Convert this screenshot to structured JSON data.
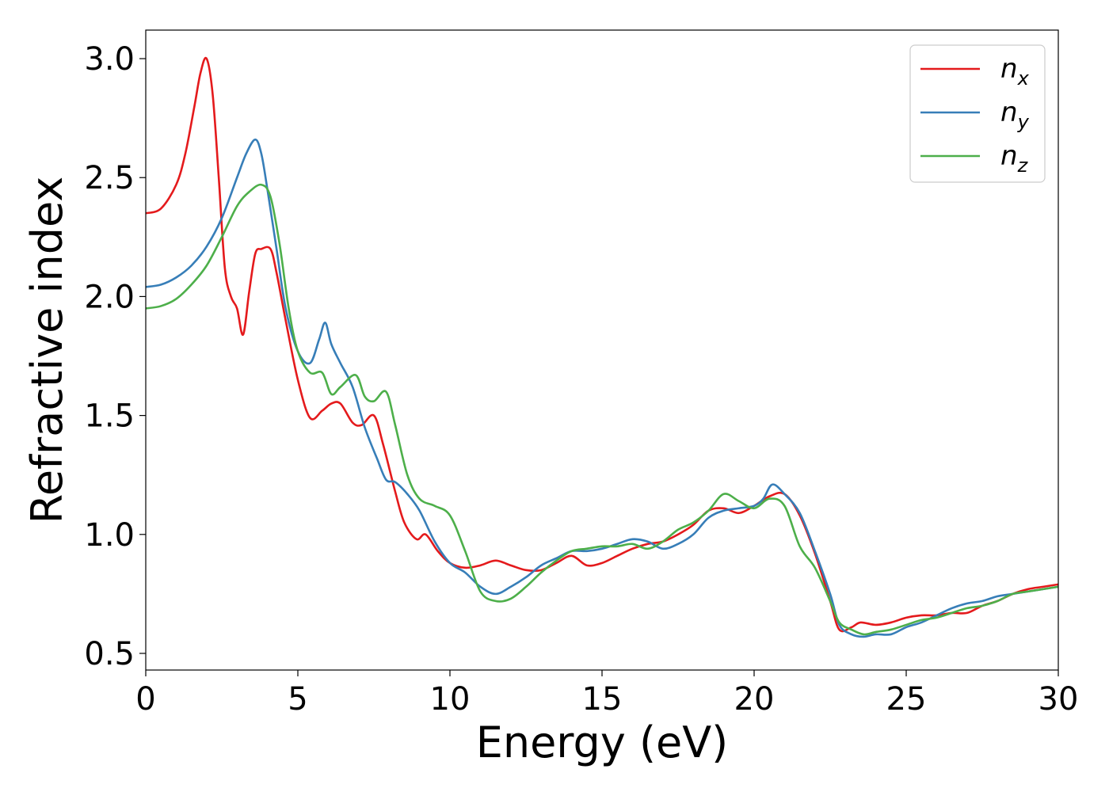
{
  "chart_data": {
    "type": "line",
    "title": "",
    "xlabel": "Energy (eV)",
    "ylabel": "Refractive index",
    "xlim": [
      0,
      30
    ],
    "ylim": [
      0.43,
      3.12
    ],
    "x_ticks": [
      0,
      5,
      10,
      15,
      20,
      25,
      30
    ],
    "y_ticks": [
      0.5,
      1.0,
      1.5,
      2.0,
      2.5,
      3.0
    ],
    "x_tick_labels": [
      "0",
      "5",
      "10",
      "15",
      "20",
      "25",
      "30"
    ],
    "y_tick_labels": [
      "0.5",
      "1.0",
      "1.5",
      "2.0",
      "2.5",
      "3.0"
    ],
    "grid": false,
    "legend_position": "top-right",
    "series": [
      {
        "name": "n_x",
        "label_base": "n",
        "label_sub": "x",
        "color": "#e41a1c",
        "x": [
          0,
          0.5,
          1.0,
          1.3,
          1.6,
          1.8,
          2.0,
          2.2,
          2.4,
          2.6,
          2.8,
          3.0,
          3.2,
          3.4,
          3.6,
          3.8,
          4.1,
          4.3,
          4.6,
          5.0,
          5.4,
          5.8,
          6.1,
          6.4,
          6.8,
          7.1,
          7.5,
          7.8,
          8.2,
          8.5,
          8.9,
          9.2,
          9.6,
          10.0,
          10.5,
          11.0,
          11.5,
          12.0,
          12.5,
          13.0,
          13.5,
          14.0,
          14.5,
          15.0,
          15.5,
          16.0,
          16.5,
          17.0,
          17.5,
          18.0,
          18.5,
          19.0,
          19.5,
          20.0,
          20.5,
          21.0,
          21.5,
          22.0,
          22.5,
          22.8,
          23.2,
          23.5,
          24.0,
          24.5,
          25.0,
          25.5,
          26.0,
          26.5,
          27.0,
          27.5,
          28.0,
          28.5,
          29.0,
          29.5,
          30.0
        ],
        "values": [
          2.35,
          2.37,
          2.47,
          2.6,
          2.8,
          2.94,
          3.0,
          2.85,
          2.5,
          2.12,
          2.0,
          1.95,
          1.84,
          2.02,
          2.18,
          2.2,
          2.2,
          2.1,
          1.9,
          1.65,
          1.49,
          1.52,
          1.55,
          1.55,
          1.47,
          1.46,
          1.5,
          1.38,
          1.18,
          1.05,
          0.98,
          1.0,
          0.93,
          0.88,
          0.86,
          0.87,
          0.89,
          0.87,
          0.85,
          0.85,
          0.88,
          0.91,
          0.87,
          0.88,
          0.91,
          0.94,
          0.96,
          0.97,
          1.0,
          1.04,
          1.1,
          1.11,
          1.09,
          1.12,
          1.16,
          1.17,
          1.08,
          0.92,
          0.72,
          0.6,
          0.61,
          0.63,
          0.62,
          0.63,
          0.65,
          0.66,
          0.66,
          0.67,
          0.67,
          0.7,
          0.72,
          0.75,
          0.77,
          0.78,
          0.79
        ]
      },
      {
        "name": "n_y",
        "label_base": "n",
        "label_sub": "y",
        "color": "#377eb8",
        "x": [
          0,
          0.5,
          1.0,
          1.5,
          2.0,
          2.5,
          3.0,
          3.3,
          3.6,
          3.8,
          4.0,
          4.3,
          4.6,
          5.0,
          5.4,
          5.7,
          5.9,
          6.1,
          6.4,
          6.8,
          7.2,
          7.6,
          7.9,
          8.2,
          8.6,
          9.0,
          9.5,
          10.0,
          10.5,
          11.0,
          11.5,
          12.0,
          12.5,
          13.0,
          13.5,
          14.0,
          14.5,
          15.0,
          15.5,
          16.0,
          16.5,
          17.0,
          17.5,
          18.0,
          18.5,
          19.0,
          19.5,
          20.0,
          20.3,
          20.6,
          21.0,
          21.5,
          22.0,
          22.5,
          22.8,
          23.2,
          23.6,
          24.0,
          24.5,
          25.0,
          25.5,
          26.0,
          26.5,
          27.0,
          27.5,
          28.0,
          28.5,
          29.0,
          29.5,
          30.0
        ],
        "values": [
          2.04,
          2.05,
          2.08,
          2.13,
          2.21,
          2.33,
          2.5,
          2.6,
          2.66,
          2.6,
          2.45,
          2.2,
          1.95,
          1.77,
          1.72,
          1.82,
          1.89,
          1.8,
          1.72,
          1.62,
          1.45,
          1.32,
          1.23,
          1.22,
          1.17,
          1.1,
          0.97,
          0.88,
          0.84,
          0.78,
          0.75,
          0.78,
          0.82,
          0.87,
          0.9,
          0.93,
          0.93,
          0.94,
          0.96,
          0.98,
          0.97,
          0.94,
          0.96,
          1.0,
          1.07,
          1.1,
          1.11,
          1.12,
          1.15,
          1.21,
          1.17,
          1.09,
          0.93,
          0.75,
          0.62,
          0.58,
          0.57,
          0.58,
          0.58,
          0.61,
          0.63,
          0.66,
          0.69,
          0.71,
          0.72,
          0.74,
          0.75,
          0.76,
          0.77,
          0.78
        ]
      },
      {
        "name": "n_z",
        "label_base": "n",
        "label_sub": "z",
        "color": "#4daf4a",
        "x": [
          0,
          0.5,
          1.0,
          1.5,
          2.0,
          2.5,
          3.0,
          3.4,
          3.8,
          4.1,
          4.4,
          4.7,
          5.0,
          5.4,
          5.8,
          6.1,
          6.4,
          6.9,
          7.2,
          7.5,
          7.9,
          8.2,
          8.6,
          9.0,
          9.5,
          10.0,
          10.5,
          11.0,
          11.5,
          12.0,
          12.5,
          13.0,
          13.5,
          14.0,
          14.5,
          15.0,
          15.5,
          16.0,
          16.5,
          17.0,
          17.5,
          18.0,
          18.5,
          19.0,
          19.5,
          20.0,
          20.5,
          21.0,
          21.5,
          22.0,
          22.5,
          22.8,
          23.2,
          23.6,
          24.0,
          24.5,
          25.0,
          25.5,
          26.0,
          26.5,
          27.0,
          27.5,
          28.0,
          28.5,
          29.0,
          29.5,
          30.0
        ],
        "values": [
          1.95,
          1.96,
          1.99,
          2.05,
          2.13,
          2.25,
          2.38,
          2.44,
          2.47,
          2.42,
          2.22,
          1.95,
          1.77,
          1.68,
          1.68,
          1.59,
          1.62,
          1.67,
          1.58,
          1.56,
          1.6,
          1.46,
          1.25,
          1.15,
          1.12,
          1.08,
          0.93,
          0.76,
          0.72,
          0.73,
          0.78,
          0.84,
          0.89,
          0.93,
          0.94,
          0.95,
          0.95,
          0.96,
          0.94,
          0.97,
          1.02,
          1.05,
          1.1,
          1.17,
          1.14,
          1.11,
          1.15,
          1.12,
          0.95,
          0.86,
          0.72,
          0.63,
          0.6,
          0.58,
          0.59,
          0.6,
          0.62,
          0.64,
          0.65,
          0.67,
          0.69,
          0.7,
          0.72,
          0.75,
          0.76,
          0.77,
          0.78
        ]
      }
    ]
  }
}
